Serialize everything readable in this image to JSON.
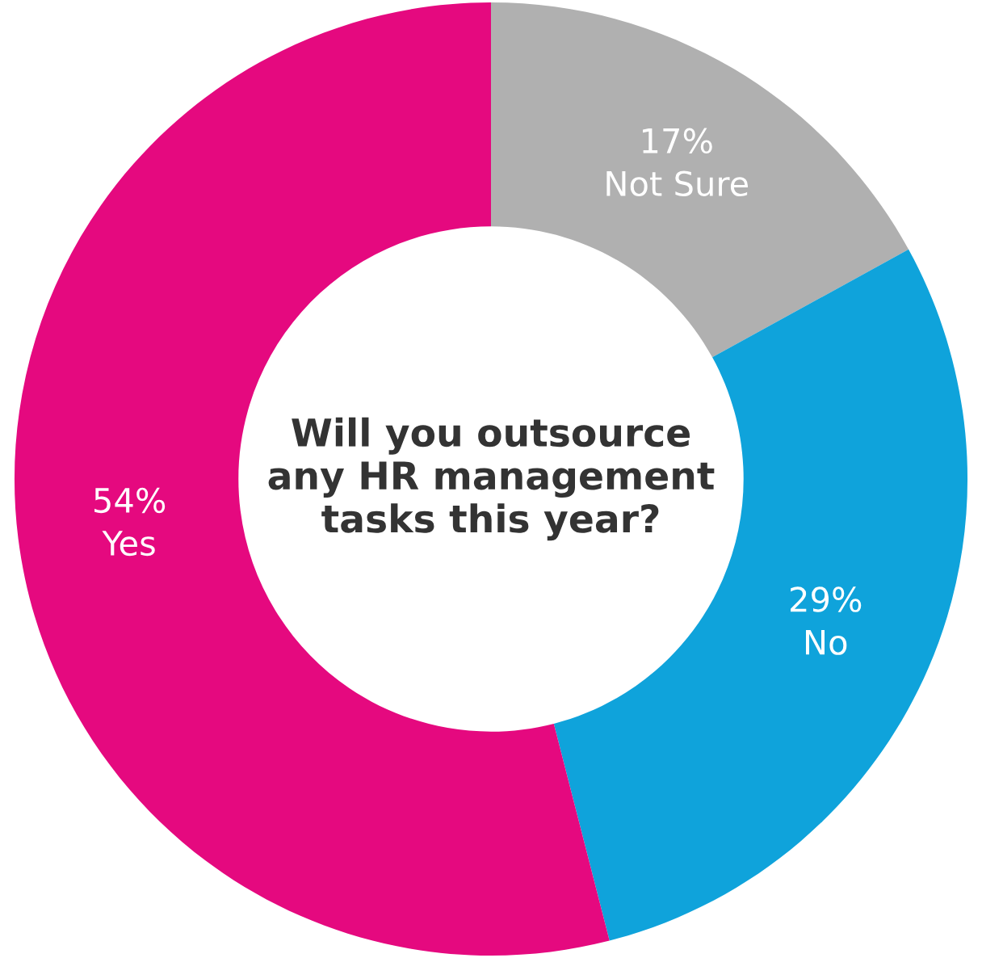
{
  "chart_data": {
    "type": "donut",
    "title": "Will you outsource any HR management tasks this year?",
    "categories": [
      "Not Sure",
      "No",
      "Yes"
    ],
    "values": [
      17,
      29,
      54
    ],
    "value_labels": [
      "17%",
      "29%",
      "54%"
    ],
    "colors": [
      "#b0b0b0",
      "#0fa3db",
      "#e5097f"
    ],
    "legend": false
  }
}
